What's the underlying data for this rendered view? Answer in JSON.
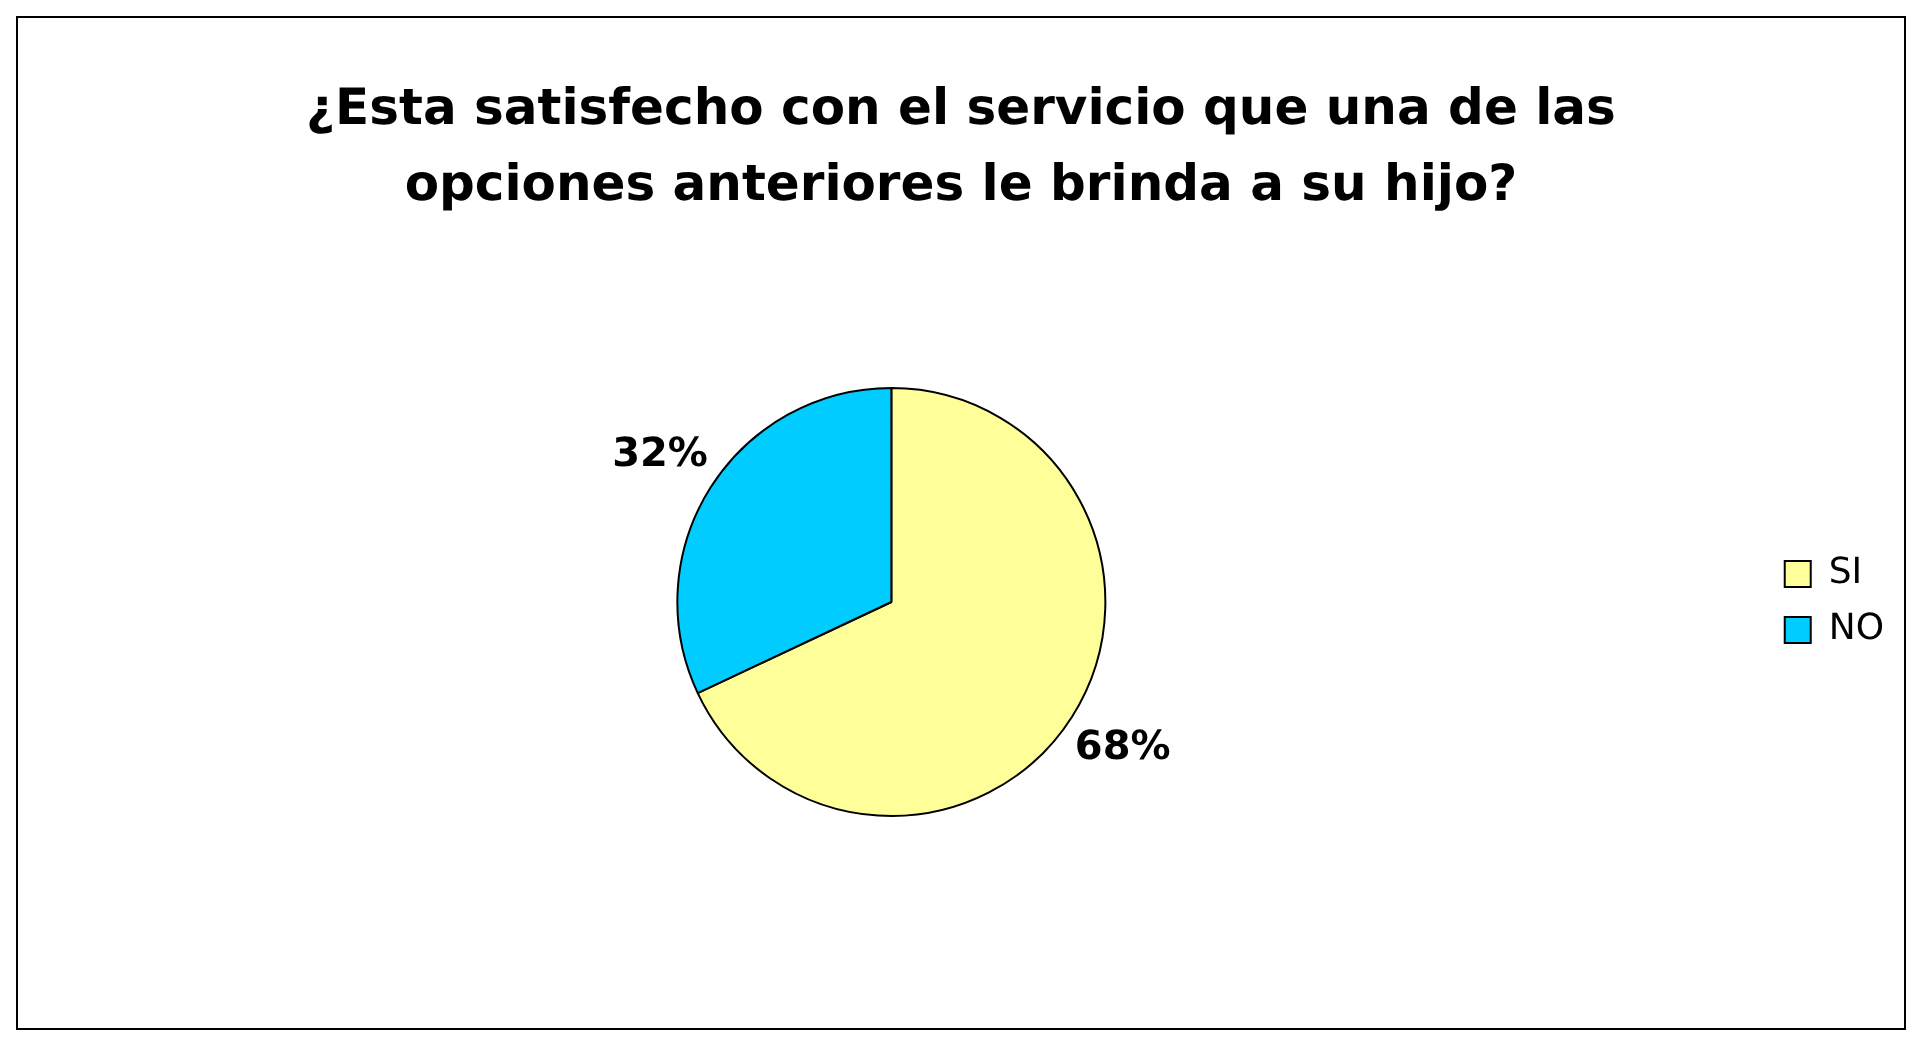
{
  "chart_data": {
    "type": "pie",
    "title": "¿Esta satisfecho con el servicio que una de las opciones anteriores le brinda a su hijo?",
    "categories": [
      "SI",
      "NO"
    ],
    "values": [
      68,
      32
    ],
    "value_labels": [
      "68%",
      "32%"
    ],
    "colors": [
      "#ffff99",
      "#00ccff"
    ],
    "legend": "right"
  }
}
